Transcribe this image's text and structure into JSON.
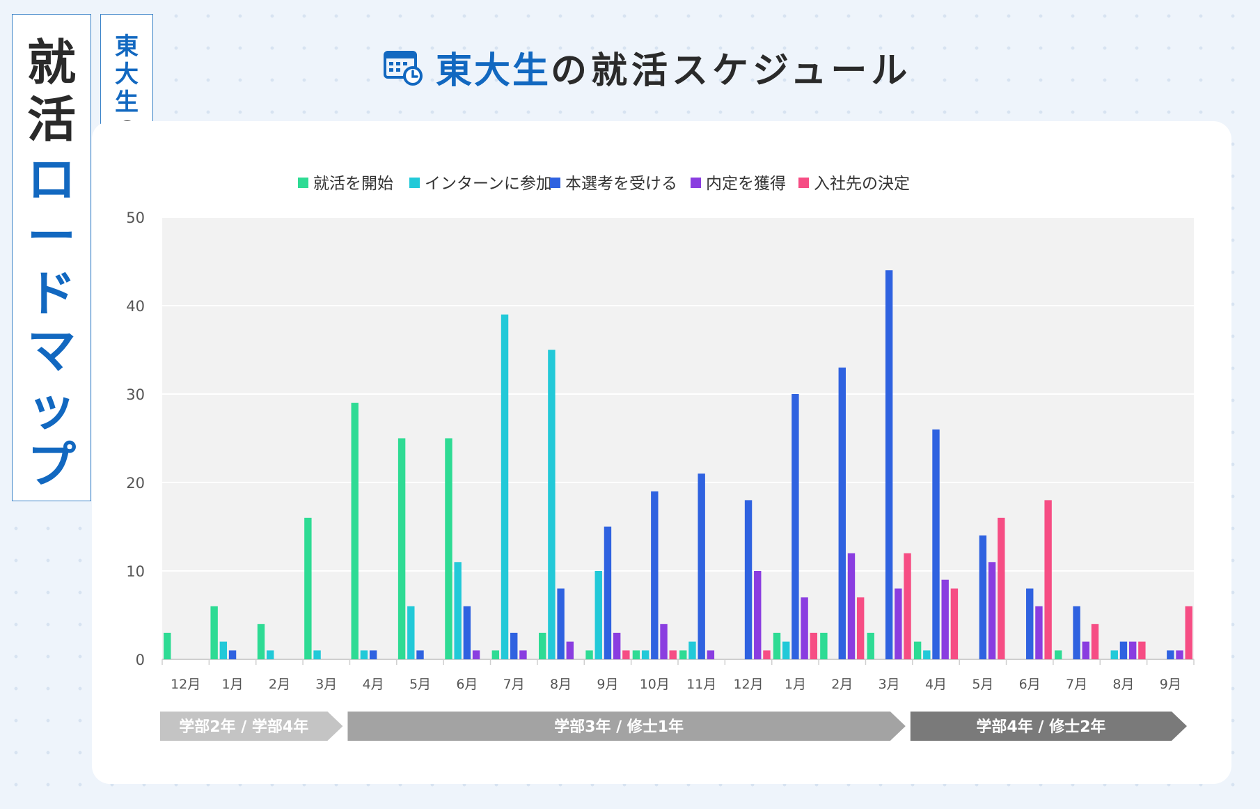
{
  "side_title": {
    "dark": "就\n活",
    "blue": "ロ\nー\nド\nマ\nッ\nプ"
  },
  "side_subtitle": {
    "blue": "東\n大\n生",
    "dark": "の"
  },
  "header": {
    "title_blue": "東大生",
    "title_dark": "の就活スケジュール"
  },
  "colors": {
    "start": "#2edb94",
    "intern": "#22c9d8",
    "selection": "#2f62e0",
    "offer": "#8a3de0",
    "decide": "#f64d84",
    "plot_bg": "#f2f2f2",
    "brand_blue": "#1268c0",
    "phase1": "#c4c4c4",
    "phase2": "#a3a3a3",
    "phase3": "#7a7a7a"
  },
  "chart_data": {
    "type": "bar",
    "categories": [
      "12月",
      "1月",
      "2月",
      "3月",
      "4月",
      "5月",
      "6月",
      "7月",
      "8月",
      "9月",
      "10月",
      "11月",
      "12月",
      "1月",
      "2月",
      "3月",
      "4月",
      "5月",
      "6月",
      "7月",
      "8月",
      "9月"
    ],
    "ylim": [
      0,
      50
    ],
    "yticks": [
      0,
      10,
      20,
      30,
      40,
      50
    ],
    "grid": true,
    "legend_position": "top",
    "series": [
      {
        "name": "就活を開始",
        "color_key": "start",
        "values": [
          3,
          6,
          4,
          16,
          29,
          25,
          25,
          1,
          3,
          1,
          1,
          1,
          0,
          3,
          3,
          3,
          2,
          0,
          0,
          1,
          0,
          0
        ]
      },
      {
        "name": "インターンに参加",
        "color_key": "intern",
        "values": [
          0,
          2,
          1,
          1,
          1,
          6,
          11,
          39,
          35,
          10,
          1,
          2,
          0,
          2,
          0,
          0,
          1,
          0,
          0,
          0,
          1,
          0
        ]
      },
      {
        "name": "本選考を受ける",
        "color_key": "selection",
        "values": [
          0,
          1,
          0,
          0,
          1,
          1,
          6,
          3,
          8,
          15,
          19,
          21,
          18,
          30,
          33,
          44,
          26,
          14,
          8,
          6,
          2,
          1
        ]
      },
      {
        "name": "内定を獲得",
        "color_key": "offer",
        "values": [
          0,
          0,
          0,
          0,
          0,
          0,
          1,
          1,
          2,
          3,
          4,
          1,
          10,
          7,
          12,
          8,
          9,
          11,
          6,
          2,
          2,
          1
        ]
      },
      {
        "name": "入社先の決定",
        "color_key": "decide",
        "values": [
          0,
          0,
          0,
          0,
          0,
          0,
          0,
          0,
          0,
          1,
          1,
          0,
          1,
          3,
          7,
          12,
          8,
          16,
          18,
          4,
          2,
          6
        ]
      }
    ],
    "phases": [
      {
        "label": "学部2年 / 学部4年",
        "start": 0,
        "end": 4,
        "color_key": "phase1"
      },
      {
        "label": "学部3年 / 修士1年",
        "start": 4,
        "end": 16,
        "color_key": "phase2"
      },
      {
        "label": "学部4年 / 修士2年",
        "start": 16,
        "end": 22,
        "color_key": "phase3"
      }
    ]
  }
}
